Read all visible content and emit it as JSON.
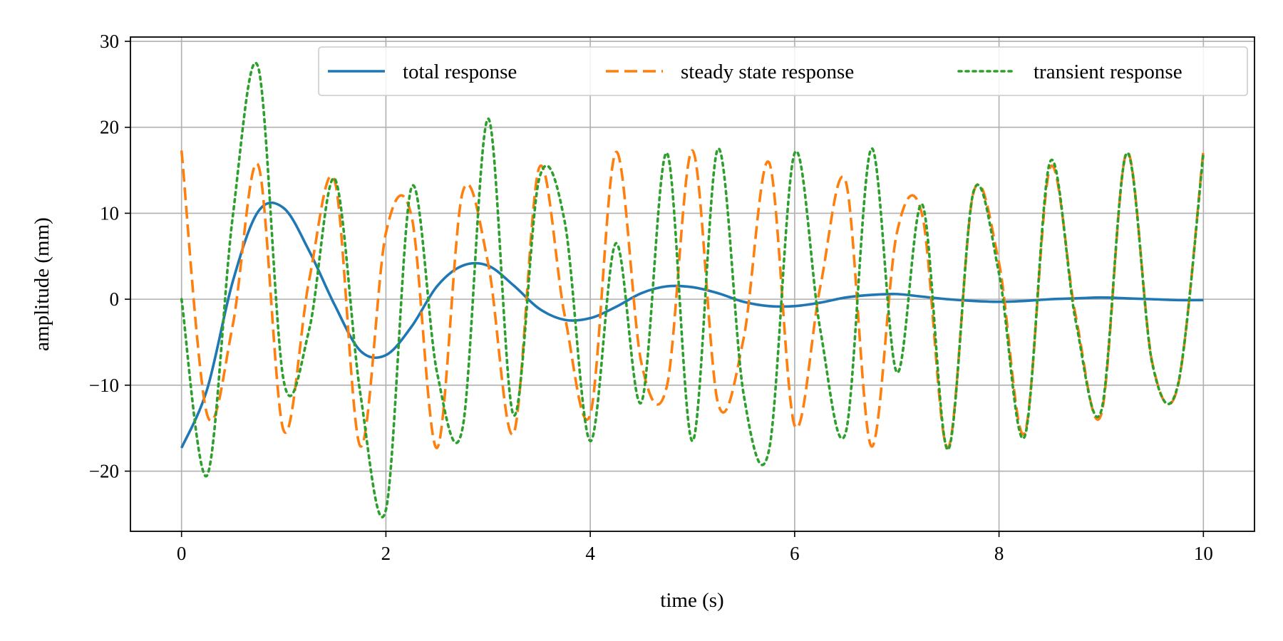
{
  "chart_data": {
    "type": "line",
    "title": "",
    "xlabel": "time (s)",
    "ylabel": "amplitude (mm)",
    "xlim": [
      -0.5,
      10.5
    ],
    "ylim": [
      -27,
      30.5
    ],
    "xticks": [
      0,
      2,
      4,
      6,
      8,
      10
    ],
    "xtick_labels": [
      "0",
      "2",
      "4",
      "6",
      "8",
      "10"
    ],
    "yticks": [
      -20,
      -10,
      0,
      10,
      20,
      30
    ],
    "ytick_labels": [
      "−20",
      "−10",
      "0",
      "10",
      "20",
      "30"
    ],
    "grid": true,
    "legend": {
      "placement": "top-right",
      "columns": 3
    },
    "x": [
      0,
      0.25,
      0.5,
      0.75,
      1.0,
      1.25,
      1.5,
      1.75,
      2.0,
      2.25,
      2.5,
      2.75,
      3.0,
      3.25,
      3.5,
      3.75,
      4.0,
      4.25,
      4.5,
      4.75,
      5.0,
      5.25,
      5.5,
      5.75,
      6.0,
      6.25,
      6.5,
      6.75,
      7.0,
      7.25,
      7.5,
      7.75,
      8.0,
      8.25,
      8.5,
      8.75,
      9.0,
      9.25,
      9.5,
      9.75,
      10.0
    ],
    "series": [
      {
        "name": "total response",
        "color": "#1f77b4",
        "style": "solid",
        "values": [
          -17.3,
          -10.5,
          2.0,
          10.2,
          10.6,
          5.6,
          -0.7,
          -6.0,
          -6.5,
          -3.2,
          1.5,
          3.9,
          3.9,
          1.6,
          -1.1,
          -2.4,
          -2.2,
          -0.9,
          0.7,
          1.5,
          1.4,
          0.7,
          -0.3,
          -0.8,
          -0.8,
          -0.4,
          0.2,
          0.5,
          0.6,
          0.3,
          0.0,
          -0.2,
          -0.3,
          -0.2,
          0.0,
          0.1,
          0.2,
          0.1,
          0.0,
          -0.1,
          -0.1
        ]
      },
      {
        "name": "steady state response",
        "color": "#ff7f0e",
        "style": "dashed",
        "amplitude": 17.5,
        "period": 0.765,
        "values": [
          17.3,
          -13.4,
          -3.1,
          15.6,
          -15.3,
          2.3,
          13.7,
          -17.1,
          7.7,
          9.7,
          -17.3,
          12.4,
          4.2,
          -15.6,
          15.3,
          -1.9,
          -13.4,
          17.1,
          -7.4,
          -10.1,
          17.3,
          -12.1,
          -4.6,
          15.9,
          -14.7,
          1.4,
          13.7,
          -17.1,
          7.7,
          9.7,
          -17.3,
          12.4,
          4.2,
          -15.6,
          15.3,
          -1.9,
          -13.4,
          17.1,
          -7.4,
          -10.1,
          17.3
        ]
      },
      {
        "name": "transient response",
        "color": "#2ca02c",
        "style": "dotted",
        "values": [
          0.0,
          -20.5,
          9.5,
          27.0,
          -9.5,
          -3.5,
          14.0,
          -11.0,
          -24.5,
          13.0,
          -8.5,
          -15.0,
          21.0,
          -13.5,
          14.0,
          9.0,
          -16.5,
          6.5,
          -12.0,
          17.0,
          -16.5,
          17.5,
          -11.0,
          -17.5,
          17.0,
          -3.5,
          -15.5,
          17.5,
          -8.5,
          11.0,
          -17.5,
          12.5,
          3.0,
          -16.0,
          16.0,
          -2.5,
          -13.0,
          17.0,
          -7.5,
          -10.0,
          17.0
        ]
      }
    ]
  }
}
